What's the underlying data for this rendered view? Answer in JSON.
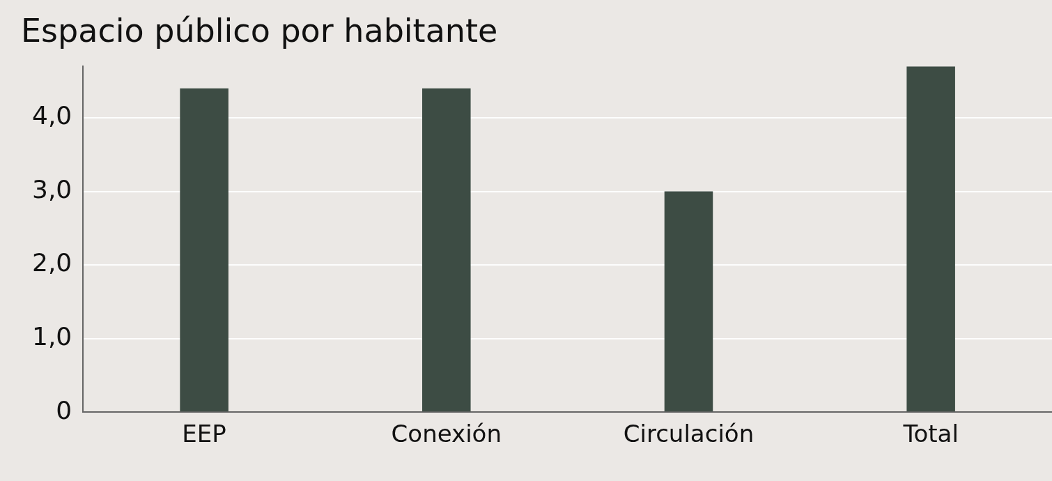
{
  "chart_data": {
    "type": "bar",
    "title": "Espacio público por habitante",
    "categories": [
      "EEP",
      "Conexión",
      "Circulación",
      "Total"
    ],
    "values": [
      4.4,
      4.4,
      3.0,
      4.7
    ],
    "color": "#3d4c44",
    "ylim": [
      0,
      4.7
    ],
    "yticks": [
      0,
      {
        "value": 1,
        "label": "1,0"
      },
      {
        "value": 2,
        "label": "2,0"
      },
      {
        "value": 3,
        "label": "3,0"
      },
      {
        "value": 4,
        "label": "4,0"
      }
    ],
    "grid": "y"
  }
}
